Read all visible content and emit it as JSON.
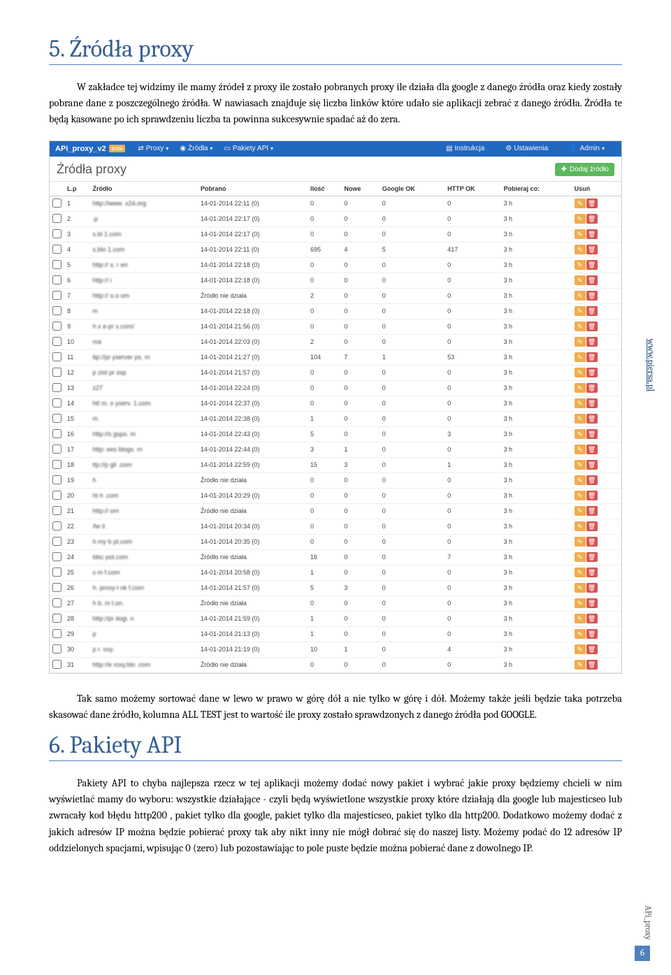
{
  "section5": {
    "title": "5. Źródła proxy",
    "para1": "W zakładce tej widzimy ile mamy źródeł z proxy ile zostało pobranych proxy ile działa dla google z danego źródła oraz kiedy zostały pobrane dane z poszczególnego źródła. W nawiasach znajduje się liczba linków które udało sie aplikacji zebrać z danego źródła. Źródła te będą kasowane po ich sprawdzeniu liczba ta powinna sukcesywnie spadać aż do zera.",
    "para2": "Tak samo możemy sortować dane w lewo w prawo w górę dół a nie tylko w górę i dół. Możemy także jeśli będzie taka potrzeba skasować dane źródło, kolumna ALL TEST jest to wartość ile proxy zostało sprawdzonych z danego źródła pod GOOGLE."
  },
  "section6": {
    "title": "6. Pakiety API",
    "para1": "Pakiety API to chyba najlepsza rzecz w tej aplikacji możemy dodać nowy pakiet i wybrać jakie proxy będziemy chcieli w nim wyświetlać mamy do wyboru: wszystkie działające - czyli będą wyświetlone wszystkie proxy które działają dla google lub majesticseo lub zwracały kod błędu http200 , pakiet tylko dla google, pakiet tylko dla majesticseo, pakiet tylko dla http200. Dodatkowo możemy dodać z jakich adresów IP można będzie pobierać proxy tak aby nikt inny nie mógł dobrać się do naszej listy. Możemy podać do 12 adresów IP oddzielonych spacjami, wpisując 0 (zero) lub pozostawiając to pole puste będzie można pobierać dane z dowolnego IP."
  },
  "nav": {
    "brand": "APi_proxy_v2",
    "beta": "beta",
    "items": [
      "Proxy",
      "Źródła",
      "Pakiety API"
    ],
    "right": [
      "Instrukcja",
      "Ustawienia",
      "Admin"
    ]
  },
  "panel": {
    "title": "Źródła proxy",
    "add": "Dodaj źródło"
  },
  "columns": [
    "",
    "L.p",
    "Źródło",
    "Pobrano",
    "Ilość",
    "Nowe",
    "Google OK",
    "HTTP OK",
    "Pobieraj co:",
    "Usuń"
  ],
  "rows": [
    [
      "1",
      "http://www.   x24.org",
      "14-01-2014 22:11 (0)",
      "0",
      "0",
      "0",
      "0",
      "3 h"
    ],
    [
      "2",
      "           .p",
      "14-01-2014 22:17 (0)",
      "0",
      "0",
      "0",
      "0",
      "3 h"
    ],
    [
      "3",
      "s.bl    1.com",
      "14-01-2014 22:17 (0)",
      "0",
      "0",
      "0",
      "0",
      "3 h"
    ],
    [
      "4",
      "s.blo    1.com",
      "14-01-2014 22:11 (0)",
      "695",
      "4",
      "5",
      "417",
      "3 h"
    ],
    [
      "5",
      "http://    s.   r   err",
      "14-01-2014 22:18 (0)",
      "0",
      "0",
      "0",
      "0",
      "3 h"
    ],
    [
      "6",
      "http://        i",
      "14-01-2014 22:18 (0)",
      "0",
      "0",
      "0",
      "0",
      "3 h"
    ],
    [
      "7",
      "http://    o.o    om",
      "Źródło nie działa",
      "2",
      "0",
      "0",
      "0",
      "3 h"
    ],
    [
      "8",
      "               m",
      "14-01-2014 22:18 (0)",
      "0",
      "0",
      "0",
      "0",
      "3 h"
    ],
    [
      "9",
      "h    x   e-pr       x.com/",
      "14-01-2014 21:56 (0)",
      "0",
      "0",
      "0",
      "0",
      "3 h"
    ],
    [
      "10",
      "            ma",
      "14-01-2014 22:03 (0)",
      "2",
      "0",
      "0",
      "0",
      "3 h"
    ],
    [
      "11",
      "ttp://pr  yserver   ps.   m",
      "14-01-2014 21:27 (0)",
      "104",
      "7",
      "1",
      "53",
      "3 h"
    ],
    [
      "12",
      "p   zist   pr   ssp",
      "14-01-2014 21:57 (0)",
      "0",
      "0",
      "0",
      "0",
      "3 h"
    ],
    [
      "13",
      "       z27",
      "14-01-2014 22:24 (0)",
      "0",
      "0",
      "0",
      "0",
      "3 h"
    ],
    [
      "14",
      "htt   m. o  yserv.    1.com",
      "14-01-2014 22:37 (0)",
      "0",
      "0",
      "0",
      "0",
      "3 h"
    ],
    [
      "15",
      "                m",
      "14-01-2014 22:38 (0)",
      "1",
      "0",
      "0",
      "0",
      "3 h"
    ],
    [
      "16",
      "http://s           gspo.   m",
      "14-01-2014 22:43 (0)",
      "5",
      "0",
      "0",
      "3",
      "3 h"
    ],
    [
      "17",
      "http:   ees        blogs.   m",
      "14-01-2014 22:44 (0)",
      "3",
      "1",
      "0",
      "0",
      "3 h"
    ],
    [
      "18",
      "ttp://p  gli           .com",
      "14-01-2014 22:59 (0)",
      "15",
      "3",
      "0",
      "1",
      "3 h"
    ],
    [
      "19",
      "h               ",
      "Źródło nie działa",
      "0",
      "0",
      "0",
      "0",
      "3 h"
    ],
    [
      "20",
      "ht    h    .com",
      "14-01-2014 20:29 (0)",
      "0",
      "0",
      "0",
      "0",
      "3 h"
    ],
    [
      "21",
      "http://          om",
      "Źródło nie działa",
      "0",
      "0",
      "0",
      "0",
      "3 h"
    ],
    [
      "22",
      "     /lw    il",
      "14-01-2014 20:34 (0)",
      "0",
      "0",
      "0",
      "0",
      "3 h"
    ],
    [
      "23",
      "    h   my    b   pt.com",
      "14-01-2014 20:35 (0)",
      "0",
      "0",
      "0",
      "0",
      "3 h"
    ],
    [
      "24",
      "         ldsc     pot.com",
      "Źródło nie działa",
      "16",
      "0",
      "0",
      "7",
      "3 h"
    ],
    [
      "25",
      "    s       m        f.com",
      "14-01-2014 20:58 (0)",
      "1",
      "0",
      "0",
      "0",
      "3 h"
    ],
    [
      "26",
      "h.   proxy-l    nk  f.com",
      "14-01-2014 21:57 (0)",
      "5",
      "3",
      "0",
      "0",
      "3 h"
    ],
    [
      "27",
      "h   b.      m    t.on.",
      "Źródło nie działa",
      "0",
      "0",
      "0",
      "0",
      "3 h"
    ],
    [
      "28",
      "http://pr         ilogi. n",
      "14-01-2014 21:59 (0)",
      "1",
      "0",
      "0",
      "0",
      "3 h"
    ],
    [
      "29",
      "         p          ",
      "14-01-2014 21:13 (0)",
      "1",
      "0",
      "0",
      "0",
      "3 h"
    ],
    [
      "30",
      "    p   r.   oxy.",
      "14-01-2014 21:19 (0)",
      "10",
      "1",
      "0",
      "4",
      "3 h"
    ],
    [
      "31",
      "http://e    roxy.blo    .com",
      "Źródło nie działa",
      "0",
      "0",
      "0",
      "0",
      "3 h"
    ]
  ],
  "side": {
    "url": "www.piersa.pl",
    "footer": "APi_proxy",
    "page": "6"
  }
}
